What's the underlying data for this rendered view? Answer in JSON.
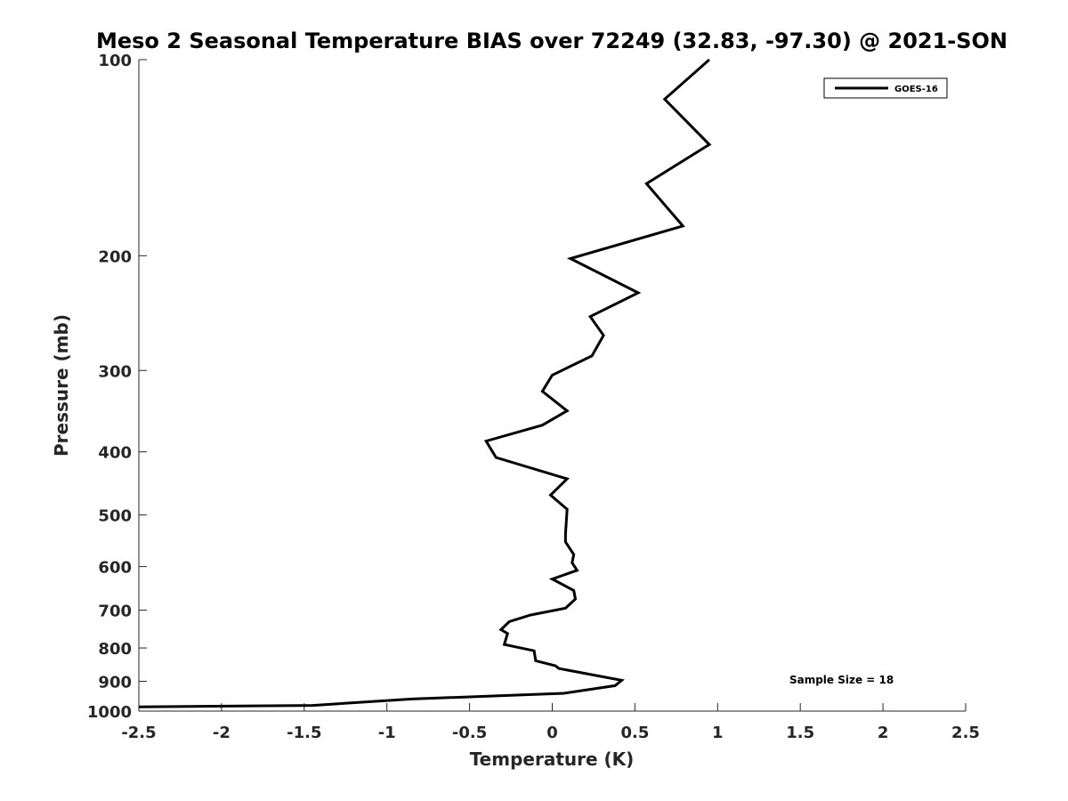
{
  "chart_data": {
    "type": "line",
    "title": "Meso 2 Seasonal Temperature BIAS over 72249 (32.83, -97.30) @ 2021-SON",
    "xlabel": "Temperature (K)",
    "ylabel": "Pressure (mb)",
    "xlim": [
      -2.5,
      2.5
    ],
    "ylim": [
      100,
      1000
    ],
    "yscale": "log",
    "y_reversed": true,
    "xticks": [
      -2.5,
      -2,
      -1.5,
      -1,
      -0.5,
      0,
      0.5,
      1,
      1.5,
      2,
      2.5
    ],
    "xtick_labels": [
      "-2.5",
      "-2",
      "-1.5",
      "-1",
      "-0.5",
      "0",
      "0.5",
      "1",
      "1.5",
      "2",
      "2.5"
    ],
    "yticks": [
      100,
      200,
      300,
      400,
      500,
      600,
      700,
      800,
      900,
      1000
    ],
    "ytick_labels": [
      "100",
      "200",
      "300",
      "400",
      "500",
      "600",
      "700",
      "800",
      "900",
      "1000"
    ],
    "grid": false,
    "legend_position": "top-right",
    "series": [
      {
        "name": "GOES-16",
        "color": "#000000",
        "x": [
          0.95,
          0.68,
          0.95,
          0.57,
          0.79,
          0.11,
          0.52,
          0.23,
          0.31,
          0.24,
          0.0,
          -0.06,
          0.09,
          -0.06,
          -0.4,
          -0.34,
          0.09,
          -0.01,
          0.09,
          0.08,
          0.08,
          0.13,
          0.12,
          0.15,
          0.0,
          0.13,
          0.14,
          0.08,
          -0.13,
          -0.26,
          -0.31,
          -0.27,
          -0.29,
          -0.11,
          -0.1,
          0.02,
          0.04,
          0.42,
          0.38,
          0.07,
          -0.85,
          -1.45,
          -2.5
        ],
        "y": [
          100,
          115,
          135,
          155,
          180,
          202,
          228,
          248,
          265,
          285,
          305,
          323,
          346,
          364,
          385,
          408,
          440,
          466,
          490,
          535,
          550,
          575,
          592,
          608,
          627,
          653,
          673,
          695,
          712,
          729,
          750,
          760,
          790,
          808,
          837,
          852,
          860,
          897,
          914,
          939,
          958,
          980,
          985
        ]
      }
    ],
    "annotations": [
      {
        "text": "Sample Size = 18",
        "x": 1.75,
        "y": 907
      }
    ]
  }
}
